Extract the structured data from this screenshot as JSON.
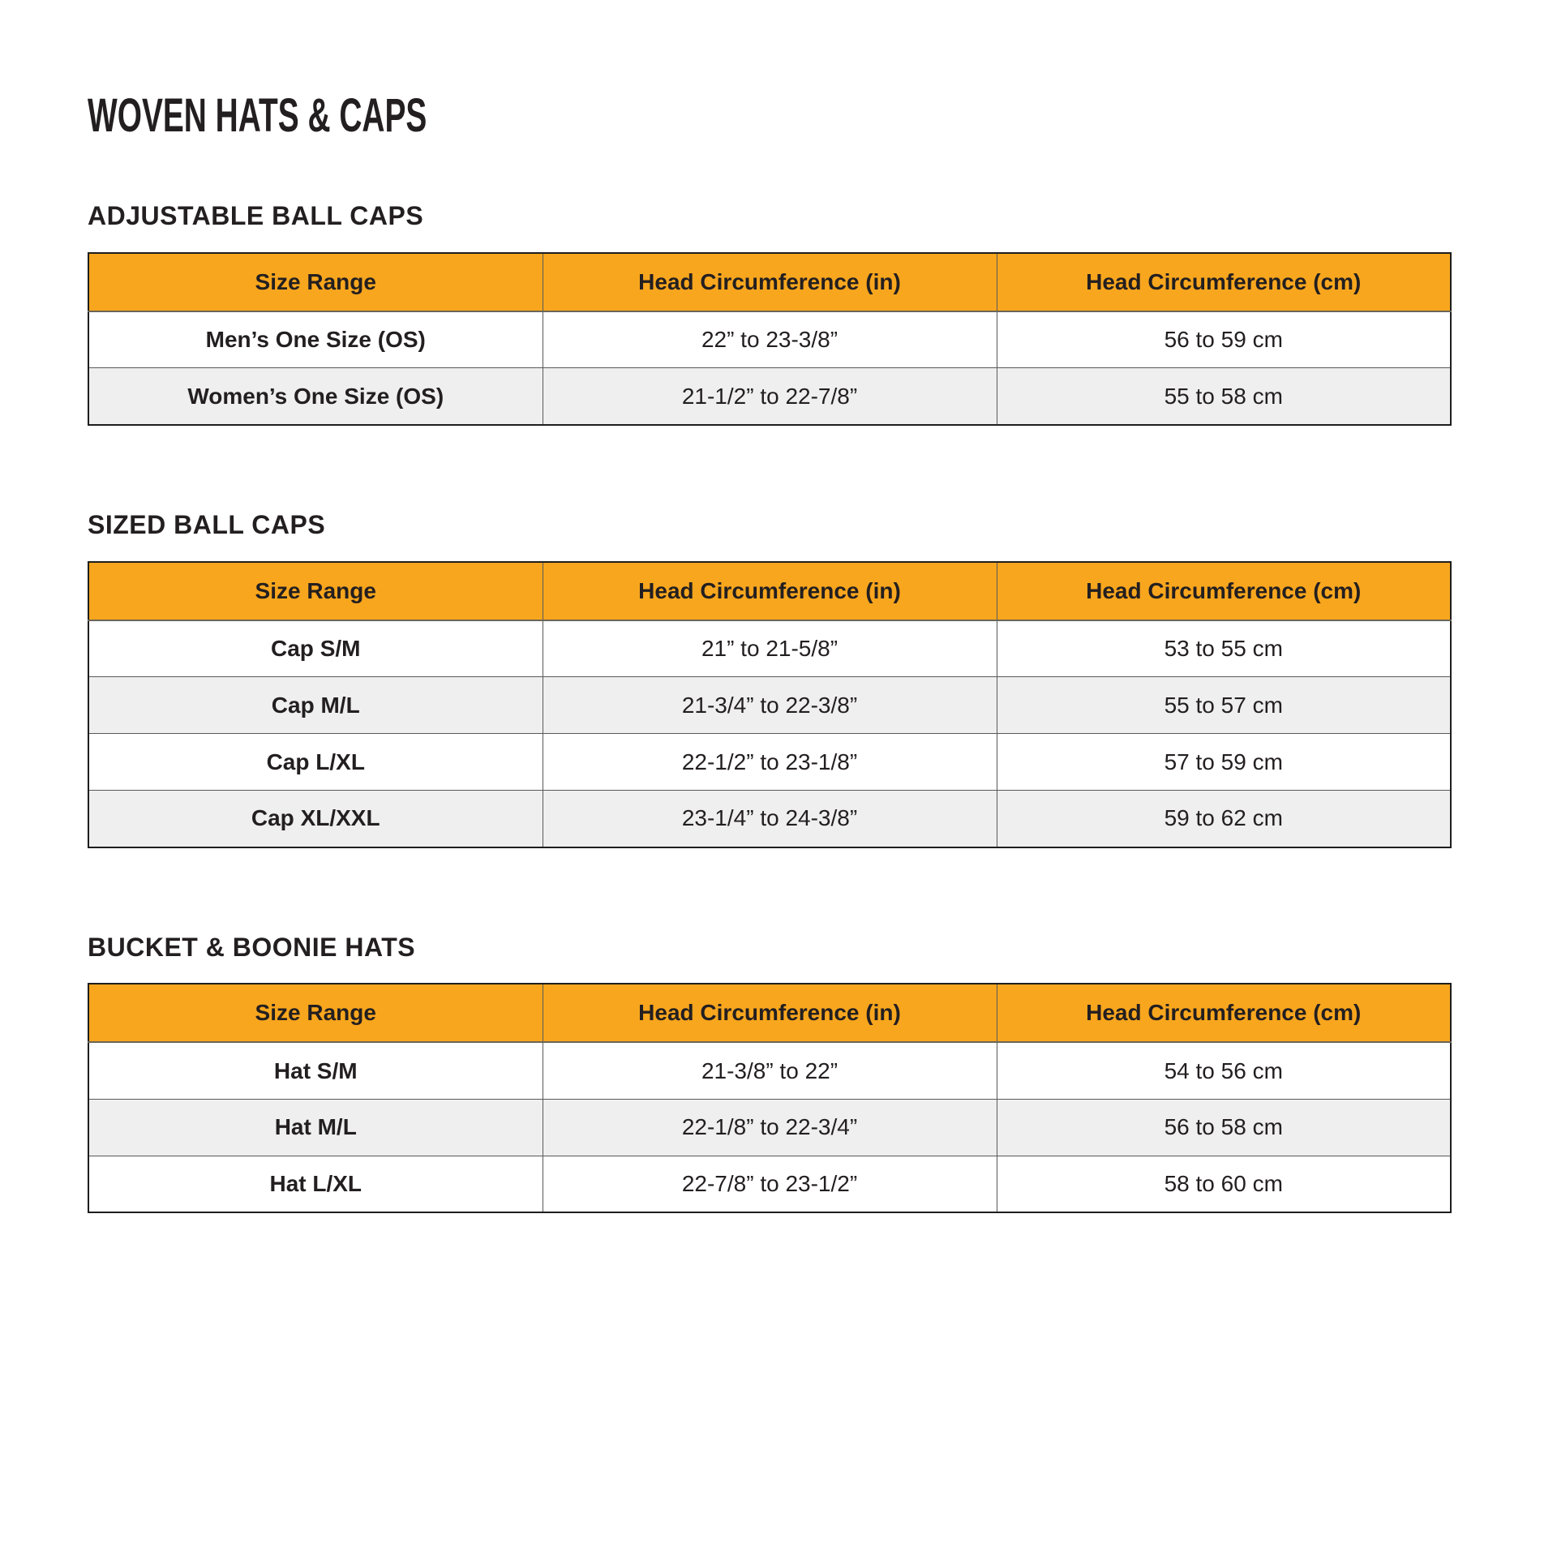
{
  "page": {
    "title": "WOVEN HATS & CAPS"
  },
  "table_columns": [
    "Size Range",
    "Head Circumference (in)",
    "Head Circumference (cm)"
  ],
  "sections": [
    {
      "heading": "ADJUSTABLE BALL CAPS",
      "rows": [
        [
          "Men’s One Size (OS)",
          "22” to 23-3/8”",
          "56 to 59 cm"
        ],
        [
          "Women’s One Size (OS)",
          "21-1/2” to 22-7/8”",
          "55 to 58 cm"
        ]
      ]
    },
    {
      "heading": "SIZED BALL CAPS",
      "rows": [
        [
          "Cap S/M",
          "21” to 21-5/8”",
          "53 to 55 cm"
        ],
        [
          "Cap M/L",
          "21-3/4” to 22-3/8”",
          "55 to 57 cm"
        ],
        [
          "Cap L/XL",
          "22-1/2” to 23-1/8”",
          "57 to 59 cm"
        ],
        [
          "Cap XL/XXL",
          "23-1/4” to 24-3/8”",
          "59 to 62 cm"
        ]
      ]
    },
    {
      "heading": "BUCKET & BOONIE HATS",
      "rows": [
        [
          "Hat S/M",
          "21-3/8” to 22”",
          "54 to 56 cm"
        ],
        [
          "Hat M/L",
          "22-1/8” to 22-3/4”",
          "56 to 58 cm"
        ],
        [
          "Hat L/XL",
          "22-7/8” to 23-1/2”",
          "58 to 60 cm"
        ]
      ]
    }
  ],
  "colors": {
    "header_bg": "#F8A61E",
    "row_alt_bg": "#EFEFEF",
    "border_outer": "#1E1E1E",
    "border_inner": "#595959",
    "text": "#231F20"
  }
}
